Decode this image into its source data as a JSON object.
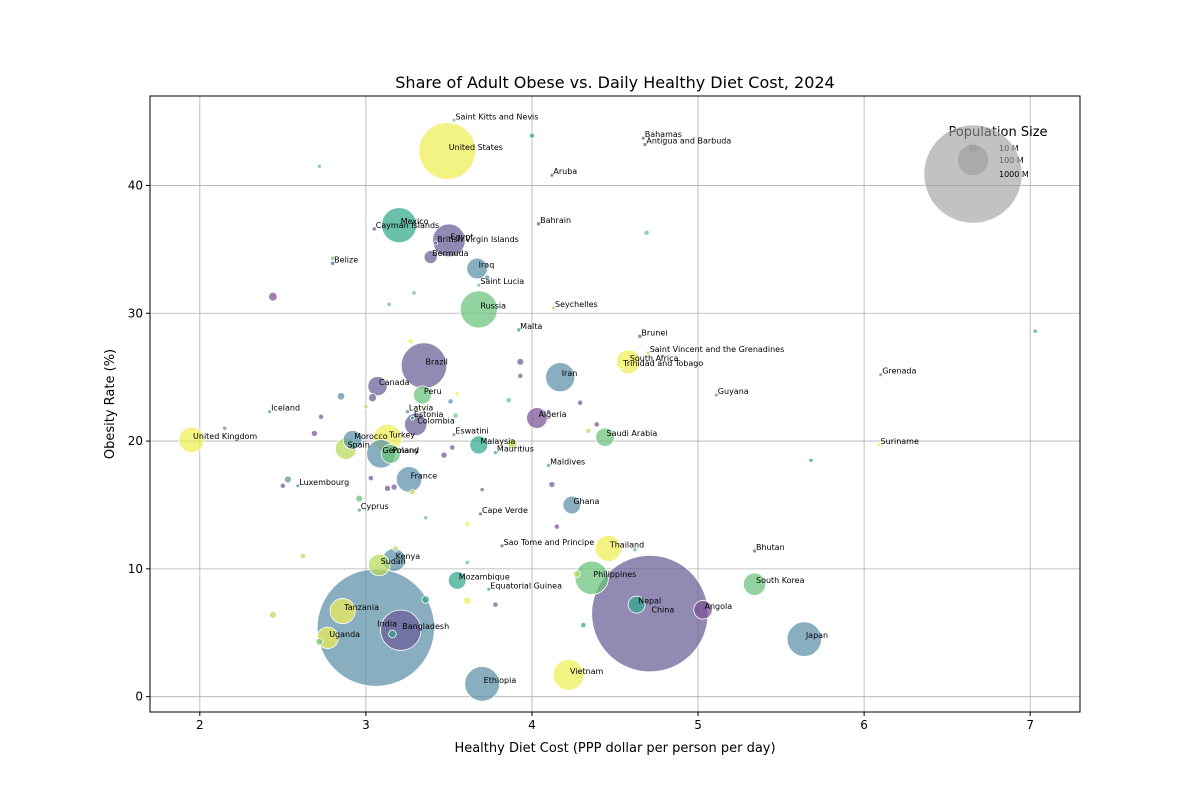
{
  "chart_data": {
    "type": "scatter",
    "title": "Share of Adult Obese vs. Daily Healthy Diet Cost, 2024",
    "xlabel": "Healthy Diet Cost (PPP dollar per person per day)",
    "ylabel": "Obesity Rate (%)",
    "xlim": [
      1.7,
      7.3
    ],
    "ylim": [
      -1.2,
      47.0
    ],
    "xticks": [
      2,
      3,
      4,
      5,
      6,
      7
    ],
    "yticks": [
      0,
      10,
      20,
      30,
      40
    ],
    "grid": true,
    "size_encoding": "population",
    "legend": {
      "title": "Population Size",
      "placement": "top-right",
      "entries": [
        {
          "label": "10 M",
          "population_m": 10
        },
        {
          "label": "100 M",
          "population_m": 100
        },
        {
          "label": "1000 M",
          "population_m": 1000
        }
      ]
    },
    "colors": [
      "#5b8fa8",
      "#6a5d97",
      "#7a5195",
      "#2fa88a",
      "#6ac27a",
      "#b9d95a",
      "#eeee55"
    ],
    "points": [
      {
        "x": 4.71,
        "y": 6.5,
        "pop": 1410,
        "label": "China",
        "c": 1
      },
      {
        "x": 3.06,
        "y": 5.4,
        "pop": 1430,
        "label": "India",
        "c": 0
      },
      {
        "x": 3.21,
        "y": 5.2,
        "pop": 170,
        "label": "Bangladesh",
        "c": 1
      },
      {
        "x": 3.49,
        "y": 42.7,
        "pop": 335,
        "label": "United States",
        "c": 6
      },
      {
        "x": 3.35,
        "y": 25.9,
        "pop": 216,
        "label": "Brazil",
        "c": 1
      },
      {
        "x": 3.2,
        "y": 36.9,
        "pop": 128,
        "label": "Mexico",
        "c": 3
      },
      {
        "x": 3.5,
        "y": 35.7,
        "pop": 112,
        "label": "Egypt",
        "c": 1
      },
      {
        "x": 3.68,
        "y": 30.3,
        "pop": 144,
        "label": "Russia",
        "c": 4
      },
      {
        "x": 4.17,
        "y": 25.0,
        "pop": 89,
        "label": "Iran",
        "c": 0
      },
      {
        "x": 4.36,
        "y": 9.3,
        "pop": 117,
        "label": "Philippines",
        "c": 4
      },
      {
        "x": 5.64,
        "y": 4.5,
        "pop": 124,
        "label": "Japan",
        "c": 0
      },
      {
        "x": 3.7,
        "y": 1.0,
        "pop": 126,
        "label": "Ethiopia",
        "c": 0
      },
      {
        "x": 4.22,
        "y": 1.7,
        "pop": 99,
        "label": "Vietnam",
        "c": 6
      },
      {
        "x": 4.46,
        "y": 11.6,
        "pop": 71,
        "label": "Thailand",
        "c": 6
      },
      {
        "x": 3.09,
        "y": 19.0,
        "pop": 84,
        "label": "Germany",
        "c": 0
      },
      {
        "x": 3.26,
        "y": 17.0,
        "pop": 68,
        "label": "France",
        "c": 0
      },
      {
        "x": 3.15,
        "y": 19.0,
        "pop": 38,
        "label": "Poland",
        "c": 4
      },
      {
        "x": 3.3,
        "y": 21.3,
        "pop": 52,
        "label": "Colombia",
        "c": 1
      },
      {
        "x": 3.13,
        "y": 20.2,
        "pop": 85,
        "label": "Turkey",
        "c": 6
      },
      {
        "x": 2.88,
        "y": 19.4,
        "pop": 48,
        "label": "Spain",
        "c": 5
      },
      {
        "x": 1.95,
        "y": 20.1,
        "pop": 67,
        "label": "United Kingdom",
        "c": 6
      },
      {
        "x": 3.17,
        "y": 10.7,
        "pop": 55,
        "label": "Kenya",
        "c": 0
      },
      {
        "x": 3.08,
        "y": 10.3,
        "pop": 48,
        "label": "Sudan",
        "c": 5
      },
      {
        "x": 2.86,
        "y": 6.7,
        "pop": 66,
        "label": "Tanzania",
        "c": 6
      },
      {
        "x": 2.77,
        "y": 4.6,
        "pop": 48,
        "label": "Uganda",
        "c": 6
      },
      {
        "x": 3.55,
        "y": 9.1,
        "pop": 33,
        "label": "Mozambique",
        "c": 3
      },
      {
        "x": 3.67,
        "y": 33.5,
        "pop": 45,
        "label": "Iraq",
        "c": 0
      },
      {
        "x": 4.03,
        "y": 21.8,
        "pop": 45,
        "label": "Algeria",
        "c": 2
      },
      {
        "x": 4.44,
        "y": 20.3,
        "pop": 36,
        "label": "Saudi Arabia",
        "c": 4
      },
      {
        "x": 4.58,
        "y": 26.2,
        "pop": 60,
        "label": "South Africa",
        "c": 6
      },
      {
        "x": 5.34,
        "y": 8.8,
        "pop": 52,
        "label": "South Korea",
        "c": 4
      },
      {
        "x": 4.63,
        "y": 7.2,
        "pop": 30,
        "label": "Nepal",
        "c": 3
      },
      {
        "x": 5.03,
        "y": 6.8,
        "pop": 36,
        "label": "Angola",
        "c": 2
      },
      {
        "x": 4.24,
        "y": 15.0,
        "pop": 33,
        "label": "Ghana",
        "c": 0
      },
      {
        "x": 3.07,
        "y": 24.3,
        "pop": 39,
        "label": "Canada",
        "c": 1
      },
      {
        "x": 3.34,
        "y": 23.6,
        "pop": 34,
        "label": "Peru",
        "c": 4
      },
      {
        "x": 3.68,
        "y": 19.7,
        "pop": 34,
        "label": "Malaysia",
        "c": 3
      },
      {
        "x": 2.92,
        "y": 20.1,
        "pop": 37,
        "label": "Morocco",
        "c": 0
      },
      {
        "x": 3.39,
        "y": 34.4,
        "pop": 18,
        "label": "Bermuda",
        "c": 1
      },
      {
        "x": 3.88,
        "y": 19.8,
        "pop": 10,
        "label": "",
        "c": 5
      },
      {
        "x": 3.53,
        "y": 45.1,
        "pop": 0.5,
        "label": "Saint Kitts and Nevis",
        "c": 4
      },
      {
        "x": 4.67,
        "y": 43.7,
        "pop": 1,
        "label": "Bahamas",
        "c": 2
      },
      {
        "x": 4.68,
        "y": 43.2,
        "pop": 1,
        "label": "Antigua and Barbuda",
        "c": 2
      },
      {
        "x": 4.12,
        "y": 40.8,
        "pop": 1,
        "label": "Aruba",
        "c": 2
      },
      {
        "x": 4.04,
        "y": 37.0,
        "pop": 2,
        "label": "Bahrain",
        "c": 1
      },
      {
        "x": 3.05,
        "y": 36.6,
        "pop": 2,
        "label": "Cayman Islands",
        "c": 1
      },
      {
        "x": 3.42,
        "y": 35.5,
        "pop": 1,
        "label": "British Virgin Islands",
        "c": 1
      },
      {
        "x": 2.8,
        "y": 33.9,
        "pop": 2,
        "label": "Belize",
        "c": 1
      },
      {
        "x": 3.68,
        "y": 32.2,
        "pop": 1,
        "label": "Saint Lucia",
        "c": 4
      },
      {
        "x": 4.13,
        "y": 30.4,
        "pop": 1,
        "label": "Seychelles",
        "c": 5
      },
      {
        "x": 3.92,
        "y": 28.7,
        "pop": 2,
        "label": "Malta",
        "c": 3
      },
      {
        "x": 4.65,
        "y": 28.2,
        "pop": 2,
        "label": "Brunei",
        "c": 1
      },
      {
        "x": 4.7,
        "y": 26.9,
        "pop": 1,
        "label": "Saint Vincent and the Grenadines",
        "c": 5
      },
      {
        "x": 4.54,
        "y": 25.8,
        "pop": 2,
        "label": "Trinidad and Tobago",
        "c": 6
      },
      {
        "x": 6.1,
        "y": 25.2,
        "pop": 1,
        "label": "Grenada",
        "c": 0
      },
      {
        "x": 5.11,
        "y": 23.6,
        "pop": 1,
        "label": "Guyana",
        "c": 0
      },
      {
        "x": 2.42,
        "y": 22.3,
        "pop": 1,
        "label": "Iceland",
        "c": 0
      },
      {
        "x": 3.25,
        "y": 22.3,
        "pop": 2,
        "label": "Latvia",
        "c": 0
      },
      {
        "x": 3.28,
        "y": 21.8,
        "pop": 1,
        "label": "Estonia",
        "c": 3
      },
      {
        "x": 3.53,
        "y": 20.5,
        "pop": 1,
        "label": "Eswatini",
        "c": 0
      },
      {
        "x": 3.78,
        "y": 19.1,
        "pop": 1,
        "label": "Mauritius",
        "c": 3
      },
      {
        "x": 6.09,
        "y": 19.7,
        "pop": 1,
        "label": "Suriname",
        "c": 6
      },
      {
        "x": 4.1,
        "y": 18.1,
        "pop": 1,
        "label": "Maldives",
        "c": 3
      },
      {
        "x": 2.59,
        "y": 16.5,
        "pop": 1,
        "label": "Luxembourg",
        "c": 3
      },
      {
        "x": 2.96,
        "y": 14.6,
        "pop": 1,
        "label": "Cyprus",
        "c": 0
      },
      {
        "x": 3.69,
        "y": 14.3,
        "pop": 1,
        "label": "Cape Verde",
        "c": 1
      },
      {
        "x": 3.82,
        "y": 11.8,
        "pop": 1,
        "label": "Sao Tome and Principe",
        "c": 1
      },
      {
        "x": 5.34,
        "y": 11.4,
        "pop": 1,
        "label": "Bhutan",
        "c": 1
      },
      {
        "x": 3.74,
        "y": 8.4,
        "pop": 1,
        "label": "Equatorial Guinea",
        "c": 3
      },
      {
        "x": 2.44,
        "y": 31.3,
        "pop": 8,
        "label": "",
        "c": 2
      },
      {
        "x": 2.72,
        "y": 41.5,
        "pop": 2,
        "label": "",
        "c": 4
      },
      {
        "x": 4.0,
        "y": 43.9,
        "pop": 3,
        "label": "",
        "c": 3
      },
      {
        "x": 4.69,
        "y": 36.3,
        "pop": 3,
        "label": "",
        "c": 4
      },
      {
        "x": 7.03,
        "y": 28.6,
        "pop": 2,
        "label": "",
        "c": 3
      },
      {
        "x": 3.29,
        "y": 31.6,
        "pop": 2,
        "label": "",
        "c": 4
      },
      {
        "x": 3.14,
        "y": 30.7,
        "pop": 2,
        "label": "",
        "c": 4
      },
      {
        "x": 3.73,
        "y": 32.8,
        "pop": 3,
        "label": "",
        "c": 0
      },
      {
        "x": 2.8,
        "y": 34.3,
        "pop": 2,
        "label": "",
        "c": 4
      },
      {
        "x": 3.27,
        "y": 27.8,
        "pop": 3,
        "label": "",
        "c": 6
      },
      {
        "x": 3.93,
        "y": 26.2,
        "pop": 5,
        "label": "",
        "c": 1
      },
      {
        "x": 3.93,
        "y": 25.1,
        "pop": 3,
        "label": "",
        "c": 1
      },
      {
        "x": 2.85,
        "y": 23.5,
        "pop": 6,
        "label": "",
        "c": 0
      },
      {
        "x": 3.04,
        "y": 23.4,
        "pop": 7,
        "label": "",
        "c": 1
      },
      {
        "x": 3.0,
        "y": 22.7,
        "pop": 2,
        "label": "",
        "c": 5
      },
      {
        "x": 3.51,
        "y": 23.1,
        "pop": 3,
        "label": "",
        "c": 0
      },
      {
        "x": 3.55,
        "y": 23.7,
        "pop": 2,
        "label": "",
        "c": 6
      },
      {
        "x": 3.54,
        "y": 22.0,
        "pop": 3,
        "label": "",
        "c": 4
      },
      {
        "x": 3.86,
        "y": 23.2,
        "pop": 3,
        "label": "",
        "c": 4
      },
      {
        "x": 4.29,
        "y": 23.0,
        "pop": 3,
        "label": "",
        "c": 1
      },
      {
        "x": 4.1,
        "y": 22.3,
        "pop": 2,
        "label": "",
        "c": 1
      },
      {
        "x": 2.73,
        "y": 21.9,
        "pop": 3,
        "label": "",
        "c": 1
      },
      {
        "x": 2.15,
        "y": 21.0,
        "pop": 2,
        "label": "",
        "c": 0
      },
      {
        "x": 2.69,
        "y": 20.6,
        "pop": 4,
        "label": "",
        "c": 2
      },
      {
        "x": 4.39,
        "y": 21.3,
        "pop": 3,
        "label": "",
        "c": 2
      },
      {
        "x": 4.34,
        "y": 20.8,
        "pop": 3,
        "label": "",
        "c": 5
      },
      {
        "x": 3.52,
        "y": 19.5,
        "pop": 3,
        "label": "",
        "c": 2
      },
      {
        "x": 3.47,
        "y": 18.9,
        "pop": 4,
        "label": "",
        "c": 2
      },
      {
        "x": 5.68,
        "y": 18.5,
        "pop": 2,
        "label": "",
        "c": 3
      },
      {
        "x": 3.03,
        "y": 17.1,
        "pop": 3,
        "label": "",
        "c": 2
      },
      {
        "x": 2.53,
        "y": 17.0,
        "pop": 5,
        "label": "",
        "c": 0
      },
      {
        "x": 2.5,
        "y": 16.5,
        "pop": 3,
        "label": "",
        "c": 1
      },
      {
        "x": 3.13,
        "y": 16.3,
        "pop": 4,
        "label": "",
        "c": 2
      },
      {
        "x": 3.17,
        "y": 16.4,
        "pop": 4,
        "label": "",
        "c": 1
      },
      {
        "x": 3.28,
        "y": 16.0,
        "pop": 3,
        "label": "",
        "c": 5
      },
      {
        "x": 3.7,
        "y": 16.2,
        "pop": 2,
        "label": "",
        "c": 1
      },
      {
        "x": 4.12,
        "y": 16.6,
        "pop": 4,
        "label": "",
        "c": 1
      },
      {
        "x": 2.96,
        "y": 15.5,
        "pop": 5,
        "label": "",
        "c": 4
      },
      {
        "x": 3.36,
        "y": 14.0,
        "pop": 2,
        "label": "",
        "c": 4
      },
      {
        "x": 3.61,
        "y": 13.5,
        "pop": 3,
        "label": "",
        "c": 6
      },
      {
        "x": 4.15,
        "y": 13.3,
        "pop": 3,
        "label": "",
        "c": 2
      },
      {
        "x": 3.18,
        "y": 11.6,
        "pop": 3,
        "label": "",
        "c": 5
      },
      {
        "x": 2.62,
        "y": 11.0,
        "pop": 3,
        "label": "",
        "c": 5
      },
      {
        "x": 3.61,
        "y": 10.5,
        "pop": 2,
        "label": "",
        "c": 4
      },
      {
        "x": 4.27,
        "y": 9.6,
        "pop": 5,
        "label": "",
        "c": 5
      },
      {
        "x": 4.62,
        "y": 11.5,
        "pop": 2,
        "label": "",
        "c": 4
      },
      {
        "x": 3.36,
        "y": 7.6,
        "pop": 6,
        "label": "",
        "c": 3
      },
      {
        "x": 3.61,
        "y": 7.5,
        "pop": 6,
        "label": "",
        "c": 6
      },
      {
        "x": 3.78,
        "y": 7.2,
        "pop": 3,
        "label": "",
        "c": 1
      },
      {
        "x": 2.44,
        "y": 6.4,
        "pop": 5,
        "label": "",
        "c": 5
      },
      {
        "x": 4.31,
        "y": 5.6,
        "pop": 3,
        "label": "",
        "c": 3
      },
      {
        "x": 2.72,
        "y": 4.3,
        "pop": 5,
        "label": "",
        "c": 4
      },
      {
        "x": 3.16,
        "y": 4.9,
        "pop": 6,
        "label": "",
        "c": 3
      }
    ]
  }
}
